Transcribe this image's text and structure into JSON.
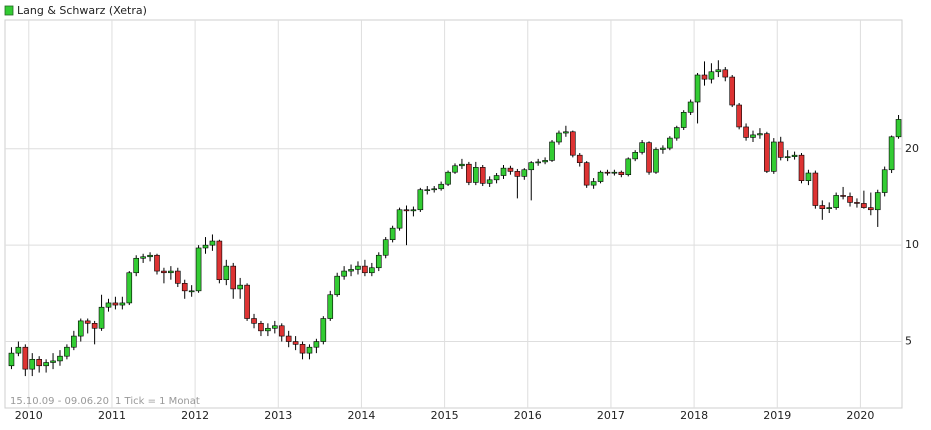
{
  "chart_data": {
    "type": "candlestick",
    "legend": "top-left",
    "grid": true,
    "yscale": "log",
    "date_range": "15.10.09 - 09.06.20",
    "interval_label": "1 Tick = 1 Monat",
    "ylim": [
      3.1,
      50.5
    ],
    "yticks": [
      5,
      10,
      20
    ],
    "categories": [
      null,
      null,
      null,
      "2010",
      null,
      null,
      null,
      null,
      null,
      null,
      null,
      null,
      null,
      null,
      null,
      "2011",
      null,
      null,
      null,
      null,
      null,
      null,
      null,
      null,
      null,
      null,
      null,
      "2012",
      null,
      null,
      null,
      null,
      null,
      null,
      null,
      null,
      null,
      null,
      null,
      "2013",
      null,
      null,
      null,
      null,
      null,
      null,
      null,
      null,
      null,
      null,
      null,
      "2014",
      null,
      null,
      null,
      null,
      null,
      null,
      null,
      null,
      null,
      null,
      null,
      "2015",
      null,
      null,
      null,
      null,
      null,
      null,
      null,
      null,
      null,
      null,
      null,
      "2016",
      null,
      null,
      null,
      null,
      null,
      null,
      null,
      null,
      null,
      null,
      null,
      "2017",
      null,
      null,
      null,
      null,
      null,
      null,
      null,
      null,
      null,
      null,
      null,
      "2018",
      null,
      null,
      null,
      null,
      null,
      null,
      null,
      null,
      null,
      null,
      null,
      "2019",
      null,
      null,
      null,
      null,
      null,
      null,
      null,
      null,
      null,
      null,
      null,
      "2020",
      null,
      null,
      null,
      null,
      null
    ],
    "series": [
      {
        "name": "Lang & Schwarz (Xetra)",
        "color": "#33cc33",
        "down_color": "#dd3333",
        "open": [
          4.2,
          4.6,
          4.8,
          4.1,
          4.4,
          4.2,
          4.3,
          4.35,
          4.5,
          4.8,
          5.2,
          5.8,
          5.7,
          5.5,
          6.4,
          6.6,
          6.5,
          6.6,
          8.2,
          9.1,
          9.2,
          9.3,
          8.3,
          8.2,
          8.3,
          7.6,
          7.2,
          7.2,
          9.8,
          10.0,
          10.3,
          7.8,
          8.6,
          7.3,
          7.5,
          5.9,
          5.7,
          5.4,
          5.5,
          5.6,
          5.2,
          5.0,
          4.9,
          4.6,
          4.8,
          5.0,
          5.9,
          7.0,
          8.0,
          8.3,
          8.4,
          8.6,
          8.2,
          8.5,
          9.3,
          10.4,
          11.3,
          12.9,
          12.8,
          12.9,
          14.9,
          14.9,
          15.0,
          15.5,
          16.9,
          17.7,
          17.9,
          15.7,
          17.5,
          15.6,
          16.0,
          16.5,
          17.4,
          17.0,
          16.4,
          17.2,
          18.1,
          18.2,
          18.4,
          21.0,
          22.4,
          22.6,
          19.1,
          18.1,
          15.4,
          15.8,
          16.9,
          16.8,
          16.9,
          16.6,
          18.6,
          19.5,
          20.9,
          16.9,
          19.9,
          20.1,
          21.6,
          23.3,
          26.0,
          28.0,
          34.0,
          33.0,
          34.8,
          35.3,
          33.5,
          27.4,
          23.4,
          21.7,
          22.1,
          22.3,
          17.0,
          21.0,
          18.8,
          18.9,
          19.1,
          15.9,
          16.8,
          13.3,
          13.0,
          13.1,
          14.3,
          14.2,
          13.6,
          13.5,
          13.1,
          12.9,
          14.6,
          17.2,
          21.8
        ],
        "high": [
          4.8,
          5.0,
          4.9,
          4.6,
          4.5,
          4.4,
          4.6,
          4.7,
          4.9,
          5.4,
          5.9,
          5.9,
          5.8,
          7.0,
          6.8,
          6.9,
          6.9,
          8.3,
          9.3,
          9.4,
          9.5,
          9.4,
          8.5,
          8.6,
          8.5,
          7.8,
          7.5,
          10.0,
          10.6,
          10.8,
          10.4,
          9.0,
          8.8,
          7.9,
          7.6,
          6.1,
          5.8,
          5.7,
          5.8,
          5.7,
          5.4,
          5.2,
          5.0,
          4.9,
          5.1,
          6.0,
          7.2,
          8.2,
          8.6,
          8.7,
          8.9,
          9.0,
          8.8,
          9.5,
          10.6,
          11.5,
          13.1,
          13.3,
          13.2,
          15.1,
          15.3,
          15.3,
          15.8,
          17.1,
          18.0,
          18.6,
          18.2,
          18.2,
          17.8,
          16.4,
          16.8,
          17.8,
          17.7,
          17.3,
          17.4,
          18.3,
          18.6,
          18.8,
          21.3,
          22.8,
          23.6,
          22.8,
          19.4,
          18.3,
          16.2,
          17.1,
          17.2,
          17.2,
          17.1,
          18.8,
          19.8,
          21.3,
          21.1,
          20.2,
          20.5,
          21.9,
          23.6,
          26.4,
          28.5,
          34.5,
          37.5,
          37.0,
          37.8,
          36.0,
          34.0,
          27.8,
          24.0,
          22.8,
          23.2,
          22.6,
          21.6,
          21.8,
          19.8,
          19.6,
          19.4,
          17.2,
          17.1,
          13.8,
          13.6,
          14.6,
          15.2,
          14.6,
          14.0,
          14.8,
          14.6,
          14.9,
          17.6,
          22.0,
          25.5
        ],
        "low": [
          4.1,
          4.5,
          3.9,
          3.9,
          4.0,
          4.0,
          4.1,
          4.2,
          4.4,
          4.7,
          5.0,
          5.3,
          4.9,
          5.4,
          6.2,
          6.3,
          6.3,
          6.5,
          8.0,
          8.8,
          8.9,
          8.1,
          7.6,
          7.8,
          7.4,
          6.8,
          6.9,
          7.1,
          9.4,
          9.6,
          7.6,
          7.5,
          6.8,
          6.8,
          5.8,
          5.5,
          5.2,
          5.2,
          5.3,
          5.0,
          4.8,
          4.7,
          4.4,
          4.4,
          4.6,
          4.9,
          5.8,
          6.9,
          7.8,
          8.0,
          8.1,
          8.0,
          8.0,
          8.3,
          9.1,
          10.2,
          11.1,
          10.0,
          12.3,
          12.7,
          14.4,
          14.6,
          14.8,
          15.3,
          16.7,
          17.3,
          15.4,
          15.4,
          15.3,
          15.2,
          15.6,
          16.1,
          16.6,
          14.0,
          16.0,
          13.8,
          17.7,
          17.9,
          18.2,
          20.6,
          21.8,
          18.8,
          17.6,
          15.1,
          15.0,
          15.6,
          16.5,
          16.5,
          16.3,
          16.4,
          18.3,
          19.2,
          16.6,
          16.7,
          19.3,
          19.8,
          21.2,
          22.9,
          25.5,
          24.0,
          31.5,
          32.0,
          33.5,
          32.5,
          27.0,
          23.0,
          21.2,
          21.0,
          21.5,
          16.8,
          16.7,
          18.4,
          18.3,
          18.5,
          15.6,
          15.4,
          13.0,
          12.0,
          12.6,
          12.9,
          13.9,
          13.2,
          13.1,
          13.0,
          12.4,
          11.4,
          14.2,
          16.8,
          21.5
        ],
        "close": [
          4.6,
          4.8,
          4.1,
          4.4,
          4.2,
          4.3,
          4.35,
          4.5,
          4.8,
          5.2,
          5.8,
          5.7,
          5.5,
          6.4,
          6.6,
          6.5,
          6.6,
          8.2,
          9.1,
          9.2,
          9.3,
          8.3,
          8.2,
          8.3,
          7.6,
          7.2,
          7.2,
          9.8,
          10.0,
          10.3,
          7.8,
          8.6,
          7.3,
          7.5,
          5.9,
          5.7,
          5.4,
          5.5,
          5.6,
          5.2,
          5.0,
          4.9,
          4.6,
          4.8,
          5.0,
          5.9,
          7.0,
          8.0,
          8.3,
          8.4,
          8.6,
          8.2,
          8.5,
          9.3,
          10.4,
          11.3,
          12.9,
          12.8,
          12.9,
          14.9,
          14.9,
          15.0,
          15.5,
          16.9,
          17.7,
          17.9,
          15.7,
          17.5,
          15.6,
          16.0,
          16.5,
          17.4,
          17.0,
          16.4,
          17.2,
          18.1,
          18.2,
          18.4,
          21.0,
          22.4,
          22.6,
          19.1,
          18.1,
          15.4,
          15.8,
          16.9,
          16.8,
          16.9,
          16.6,
          18.6,
          19.5,
          20.9,
          16.9,
          19.9,
          20.1,
          21.6,
          23.3,
          26.0,
          28.0,
          34.0,
          33.0,
          34.8,
          35.3,
          33.5,
          27.4,
          23.4,
          21.7,
          22.1,
          22.3,
          17.0,
          21.0,
          18.8,
          18.9,
          19.1,
          15.9,
          16.8,
          13.3,
          13.0,
          13.1,
          14.3,
          14.2,
          13.6,
          13.5,
          13.1,
          12.9,
          14.6,
          17.2,
          21.8,
          24.7
        ]
      }
    ]
  }
}
